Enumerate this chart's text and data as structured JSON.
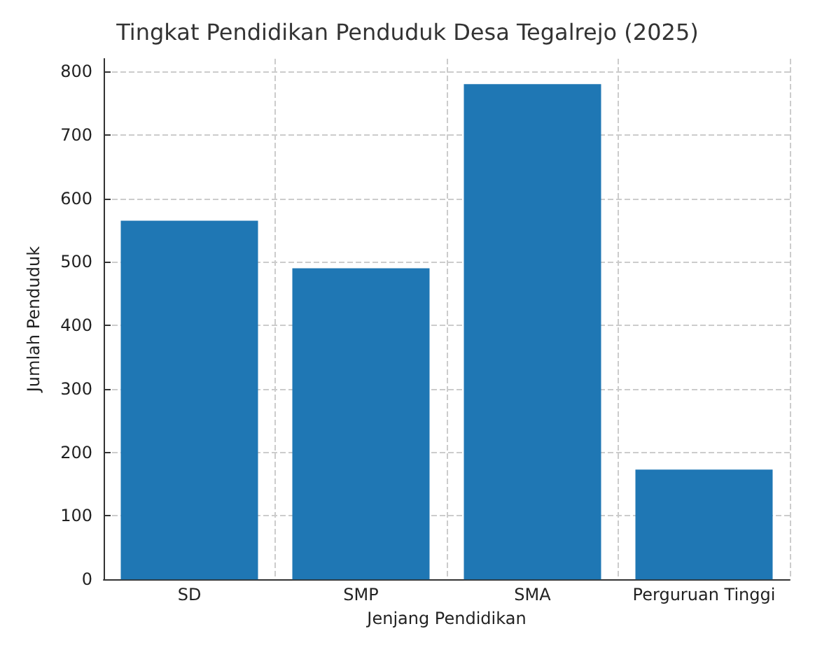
{
  "chart_data": {
    "type": "bar",
    "title": "Tingkat Pendidikan Penduduk Desa Tegalrejo (2025)",
    "xlabel": "Jenjang Pendidikan",
    "ylabel": "Jumlah Penduduk",
    "categories": [
      "SD",
      "SMP",
      "SMA",
      "Perguruan Tinggi"
    ],
    "values": [
      565,
      490,
      780,
      173
    ],
    "color": "#1f77b4",
    "ylim": [
      0,
      820
    ],
    "yticks": [
      0,
      100,
      200,
      300,
      400,
      500,
      600,
      700,
      800
    ],
    "grid": true
  }
}
